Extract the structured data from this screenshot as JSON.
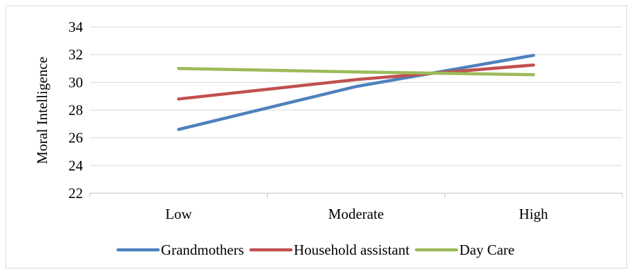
{
  "chart_data": {
    "type": "line",
    "title": "",
    "xlabel": "",
    "ylabel": "Moral Intelligence",
    "categories": [
      "Low",
      "Moderate",
      "High"
    ],
    "ylim": [
      22,
      34
    ],
    "yticks": [
      22,
      24,
      26,
      28,
      30,
      32,
      34
    ],
    "grid": true,
    "legend_position": "bottom",
    "series": [
      {
        "name": "Grandmothers",
        "color": "#4f81bd",
        "values": [
          26.6,
          29.7,
          31.95
        ]
      },
      {
        "name": "Household assistant",
        "color": "#c0504d",
        "values": [
          28.8,
          30.2,
          31.25
        ]
      },
      {
        "name": "Day Care",
        "color": "#9bbb59",
        "values": [
          31.0,
          30.75,
          30.55
        ]
      }
    ]
  }
}
